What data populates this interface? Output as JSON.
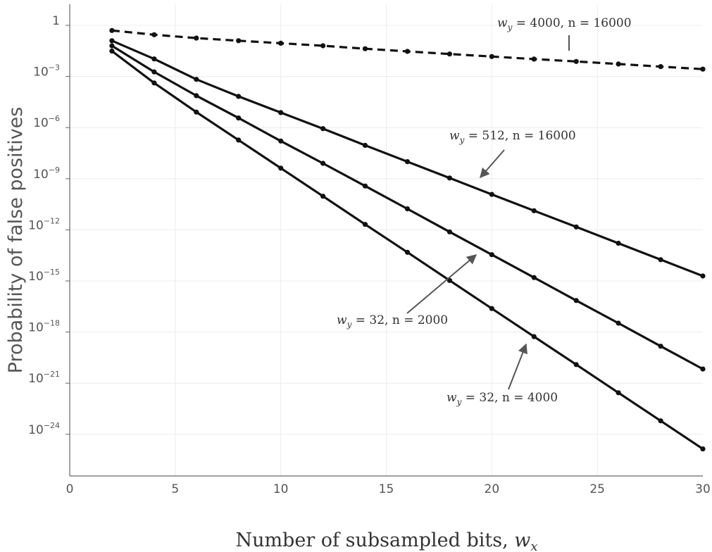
{
  "chart_data": {
    "type": "line",
    "title": "",
    "xlabel": "Number of subsampled bits, ",
    "xlabel_var": "w",
    "xlabel_sub": "x",
    "ylabel": "Probability of false positives",
    "xlim": [
      0,
      30
    ],
    "ylim_log10": [
      -26,
      1
    ],
    "yscale": "log",
    "grid": true,
    "x_ticks": [
      "0",
      "5",
      "10",
      "15",
      "20",
      "25",
      "30"
    ],
    "y_ticks": [
      {
        "base": "1",
        "exp": ""
      },
      {
        "base": "10",
        "exp": "−3"
      },
      {
        "base": "10",
        "exp": "−6"
      },
      {
        "base": "10",
        "exp": "−9"
      },
      {
        "base": "10",
        "exp": "−12"
      },
      {
        "base": "10",
        "exp": "−15"
      },
      {
        "base": "10",
        "exp": "−18"
      },
      {
        "base": "10",
        "exp": "−21"
      },
      {
        "base": "10",
        "exp": "−24"
      }
    ],
    "x": [
      2,
      4,
      6,
      8,
      10,
      12,
      14,
      16,
      18,
      20,
      22,
      24,
      26,
      28,
      30
    ],
    "series": [
      {
        "label": {
          "var": "w",
          "sub": "y",
          "rest": " = 4000, n = 16000"
        },
        "style": "dashed",
        "values_log10": [
          -0.3,
          -0.55,
          -0.75,
          -0.9,
          -1.05,
          -1.2,
          -1.37,
          -1.53,
          -1.68,
          -1.83,
          -1.98,
          -2.12,
          -2.27,
          -2.42,
          -2.57
        ]
      },
      {
        "label": {
          "var": "w",
          "sub": "y",
          "rest": " = 512, n = 16000"
        },
        "style": "solid",
        "values_log10": [
          -0.9,
          -1.97,
          -3.17,
          -4.17,
          -5.12,
          -6.06,
          -7.04,
          -8.0,
          -8.96,
          -9.92,
          -10.88,
          -11.83,
          -12.79,
          -13.75,
          -14.71
        ]
      },
      {
        "label": {
          "var": "w",
          "sub": "y",
          "rest": " = 32, n = 2000"
        },
        "style": "solid",
        "values_log10": [
          -1.2,
          -2.73,
          -4.13,
          -5.44,
          -6.79,
          -8.1,
          -9.43,
          -10.77,
          -12.12,
          -13.46,
          -14.8,
          -16.15,
          -17.48,
          -18.83,
          -20.17
        ]
      },
      {
        "label": {
          "var": "w",
          "sub": "y",
          "rest": " = 32, n = 4000"
        },
        "style": "solid",
        "values_log10": [
          -1.51,
          -3.38,
          -5.09,
          -6.73,
          -8.38,
          -10.03,
          -11.68,
          -13.32,
          -14.97,
          -16.62,
          -18.27,
          -19.91,
          -21.56,
          -23.21,
          -24.86
        ]
      }
    ]
  }
}
